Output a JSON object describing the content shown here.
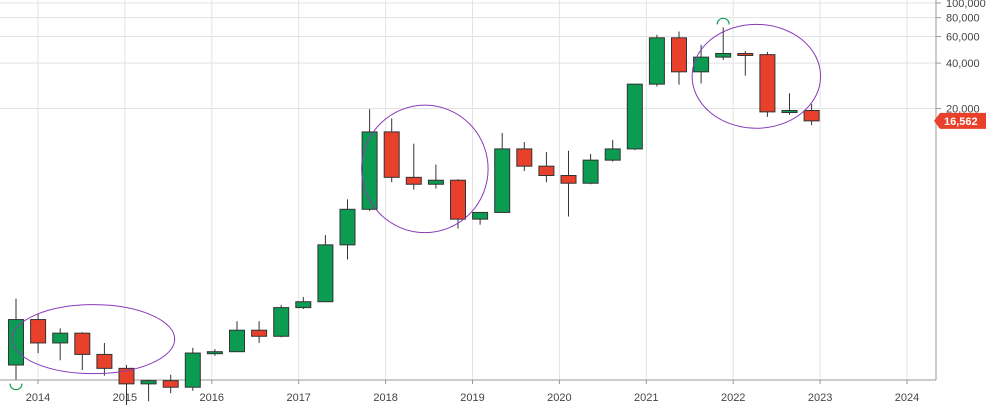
{
  "chart_data": {
    "type": "candlestick",
    "scale": "log",
    "grid": true,
    "x_ticks": [
      "2014",
      "2015",
      "2016",
      "2017",
      "2018",
      "2019",
      "2020",
      "2021",
      "2022",
      "2023",
      "2024"
    ],
    "y_ticks": [
      "100,000",
      "80,000",
      "60,000",
      "40,000",
      "20,000"
    ],
    "price_label": "16,562",
    "colors": {
      "up": "#0b9c52",
      "down": "#e8402a",
      "price_tag": "#e8402a",
      "ellipse": "#8a3ab9",
      "wick": "#333333"
    },
    "candles": [
      {
        "period": "2013-Q4",
        "open": 400,
        "high": 1100,
        "low": 320,
        "close": 800
      },
      {
        "period": "2014-Q1",
        "open": 800,
        "high": 880,
        "low": 480,
        "close": 560
      },
      {
        "period": "2014-Q2",
        "open": 560,
        "high": 700,
        "low": 430,
        "close": 650
      },
      {
        "period": "2014-Q3",
        "open": 650,
        "high": 660,
        "low": 370,
        "close": 470
      },
      {
        "period": "2014-Q4",
        "open": 470,
        "high": 560,
        "low": 340,
        "close": 380
      },
      {
        "period": "2015-Q1",
        "open": 380,
        "high": 400,
        "low": 200,
        "close": 300
      },
      {
        "period": "2015-Q2",
        "open": 300,
        "high": 320,
        "low": 230,
        "close": 315
      },
      {
        "period": "2015-Q3",
        "open": 315,
        "high": 345,
        "low": 260,
        "close": 285
      },
      {
        "period": "2015-Q4",
        "open": 285,
        "high": 520,
        "low": 270,
        "close": 480
      },
      {
        "period": "2016-Q1",
        "open": 480,
        "high": 510,
        "low": 460,
        "close": 490
      },
      {
        "period": "2016-Q2",
        "open": 490,
        "high": 780,
        "low": 490,
        "close": 680
      },
      {
        "period": "2016-Q3",
        "open": 680,
        "high": 780,
        "low": 560,
        "close": 620
      },
      {
        "period": "2016-Q4",
        "open": 620,
        "high": 1000,
        "low": 610,
        "close": 960
      },
      {
        "period": "2017-Q1",
        "open": 960,
        "high": 1130,
        "low": 940,
        "close": 1050
      },
      {
        "period": "2017-Q2",
        "open": 1050,
        "high": 2900,
        "low": 1050,
        "close": 2500
      },
      {
        "period": "2017-Q3",
        "open": 2500,
        "high": 5000,
        "low": 2000,
        "close": 4300
      },
      {
        "period": "2017-Q4",
        "open": 4300,
        "high": 19800,
        "low": 4200,
        "close": 14000
      },
      {
        "period": "2018-Q1",
        "open": 14000,
        "high": 17200,
        "low": 6500,
        "close": 7000
      },
      {
        "period": "2018-Q2",
        "open": 7000,
        "high": 11700,
        "low": 5800,
        "close": 6300
      },
      {
        "period": "2018-Q3",
        "open": 6300,
        "high": 8500,
        "low": 5900,
        "close": 6700
      },
      {
        "period": "2018-Q4",
        "open": 6700,
        "high": 6800,
        "low": 3200,
        "close": 3700
      },
      {
        "period": "2019-Q1",
        "open": 3700,
        "high": 4100,
        "low": 3400,
        "close": 4100
      },
      {
        "period": "2019-Q2",
        "open": 4100,
        "high": 13800,
        "low": 4100,
        "close": 10800
      },
      {
        "period": "2019-Q3",
        "open": 10800,
        "high": 12000,
        "low": 7700,
        "close": 8300
      },
      {
        "period": "2019-Q4",
        "open": 8300,
        "high": 10300,
        "low": 6500,
        "close": 7200
      },
      {
        "period": "2020-Q1",
        "open": 7200,
        "high": 10500,
        "low": 3850,
        "close": 6400
      },
      {
        "period": "2020-Q2",
        "open": 6400,
        "high": 10000,
        "low": 6300,
        "close": 9100
      },
      {
        "period": "2020-Q3",
        "open": 9100,
        "high": 12400,
        "low": 8900,
        "close": 10800
      },
      {
        "period": "2020-Q4",
        "open": 10800,
        "high": 29000,
        "low": 10600,
        "close": 29000
      },
      {
        "period": "2021-Q1",
        "open": 29000,
        "high": 61500,
        "low": 28000,
        "close": 58800
      },
      {
        "period": "2021-Q2",
        "open": 58800,
        "high": 64800,
        "low": 28800,
        "close": 35000
      },
      {
        "period": "2021-Q3",
        "open": 35000,
        "high": 52800,
        "low": 29300,
        "close": 43800
      },
      {
        "period": "2021-Q4",
        "open": 43800,
        "high": 69000,
        "low": 42000,
        "close": 46300
      },
      {
        "period": "2022-Q1",
        "open": 46300,
        "high": 48200,
        "low": 33000,
        "close": 45500
      },
      {
        "period": "2022-Q2",
        "open": 45500,
        "high": 47400,
        "low": 17600,
        "close": 19000
      },
      {
        "period": "2022-Q3",
        "open": 19000,
        "high": 25200,
        "low": 18200,
        "close": 19400
      },
      {
        "period": "2022-Q4",
        "open": 19400,
        "high": 21400,
        "low": 15500,
        "close": 16562
      }
    ]
  }
}
